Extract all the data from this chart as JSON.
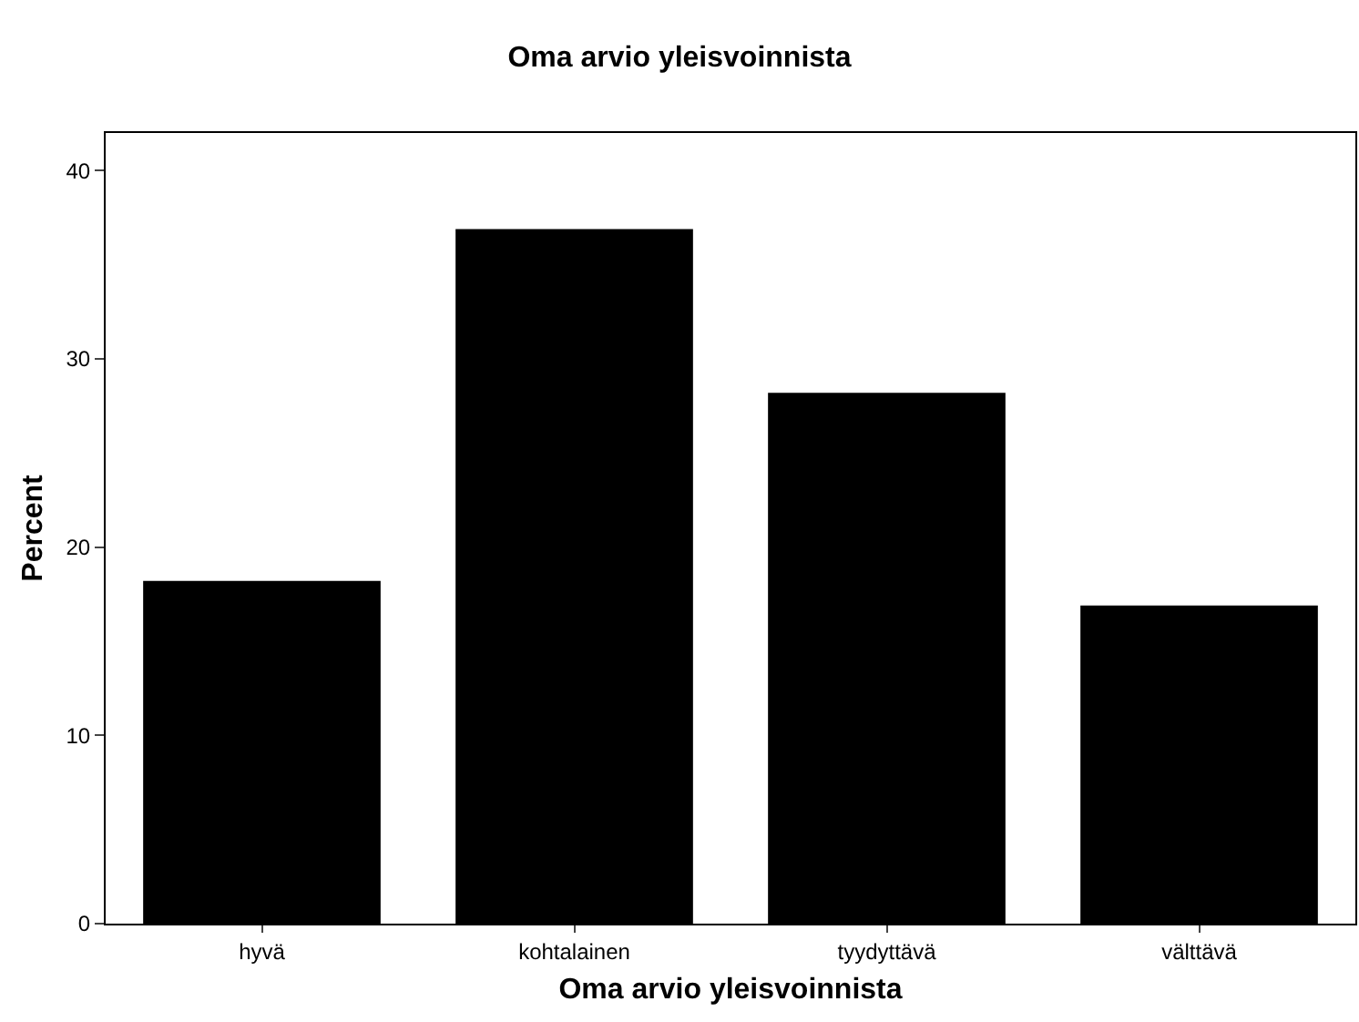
{
  "chart_data": {
    "type": "bar",
    "title": "Oma arvio yleisvoinnista",
    "xlabel": "Oma arvio yleisvoinnista",
    "ylabel": "Percent",
    "categories": [
      "hyvä",
      "kohtalainen",
      "tyydyttävä",
      "välttävä"
    ],
    "values": [
      18.2,
      36.9,
      28.2,
      16.9
    ],
    "color": "#000000",
    "ylim": [
      0,
      42
    ],
    "yticks": [
      0,
      10,
      20,
      30,
      40
    ],
    "grid": false,
    "legend": false
  }
}
